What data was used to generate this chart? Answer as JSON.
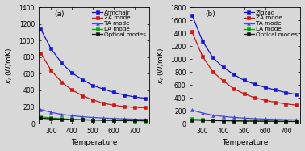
{
  "temp": [
    250,
    300,
    350,
    400,
    450,
    500,
    550,
    600,
    650,
    700,
    750
  ],
  "panel_a": {
    "label": "(a)",
    "ylim": [
      0,
      1400
    ],
    "yticks": [
      0,
      200,
      400,
      600,
      800,
      1000,
      1200,
      1400
    ],
    "ylabel": "$\\kappa_l$ (W/mK)",
    "legend_title": "Armchair",
    "series": [
      {
        "name": "Armchair",
        "color": "#1515cc",
        "marker": "s",
        "data": [
          1140,
          900,
          730,
          610,
          530,
          460,
          415,
          375,
          345,
          320,
          305
        ]
      },
      {
        "name": "ZA mode",
        "color": "#cc1515",
        "marker": "s",
        "data": [
          850,
          640,
          500,
          405,
          335,
          285,
          245,
          220,
          205,
          195,
          190
        ]
      },
      {
        "name": "TA mode",
        "color": "#4444dd",
        "marker": "^",
        "data": [
          170,
          135,
          110,
          95,
          82,
          73,
          66,
          61,
          57,
          53,
          50
        ]
      },
      {
        "name": "LA mode",
        "color": "#00aa00",
        "marker": "s",
        "data": [
          80,
          68,
          58,
          52,
          47,
          43,
          40,
          37,
          35,
          33,
          32
        ]
      },
      {
        "name": "Optical modes",
        "color": "#111111",
        "marker": "s",
        "data": [
          65,
          57,
          52,
          48,
          45,
          42,
          40,
          38,
          37,
          36,
          35
        ]
      }
    ]
  },
  "panel_b": {
    "label": "(b)",
    "ylim": [
      0,
      1800
    ],
    "yticks": [
      0,
      200,
      400,
      600,
      800,
      1000,
      1200,
      1400,
      1600,
      1800
    ],
    "ylabel": "$\\kappa_l$ (W/mK)",
    "legend_title": "Zigzag",
    "series": [
      {
        "name": "Zigzag",
        "color": "#1515cc",
        "marker": "s",
        "data": [
          1680,
          1280,
          1020,
          870,
          760,
          670,
          610,
          560,
          520,
          480,
          450
        ]
      },
      {
        "name": "ZA mode",
        "color": "#cc1515",
        "marker": "s",
        "data": [
          1420,
          1040,
          800,
          660,
          540,
          460,
          400,
          360,
          330,
          305,
          285
        ]
      },
      {
        "name": "TA mode",
        "color": "#4444dd",
        "marker": "^",
        "data": [
          210,
          162,
          130,
          110,
          95,
          84,
          76,
          70,
          65,
          61,
          58
        ]
      },
      {
        "name": "LA mode",
        "color": "#00aa00",
        "marker": "s",
        "data": [
          70,
          60,
          53,
          48,
          44,
          41,
          38,
          36,
          34,
          32,
          31
        ]
      },
      {
        "name": "Optical modes",
        "color": "#111111",
        "marker": "s",
        "data": [
          55,
          50,
          46,
          43,
          41,
          39,
          37,
          36,
          35,
          34,
          33
        ]
      }
    ]
  },
  "xlabel": "Temperature",
  "xticks": [
    300,
    400,
    500,
    600,
    700
  ],
  "xlim": [
    240,
    770
  ],
  "background": "#d8d8d8",
  "fontsize": 6.5,
  "label_fontsize": 6.5,
  "tick_fontsize": 5.5,
  "legend_fontsize": 5.2,
  "ms": 2.8,
  "lw": 0.9
}
